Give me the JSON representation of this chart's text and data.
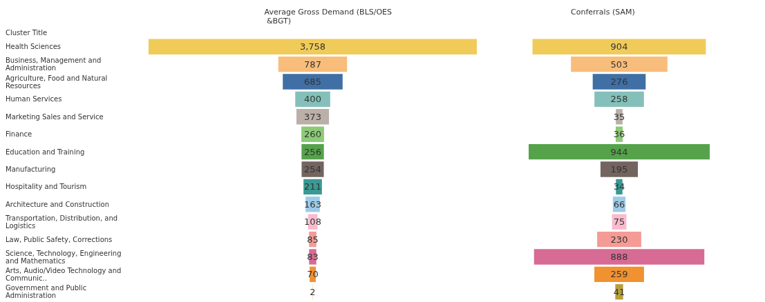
{
  "chart_data": [
    {
      "type": "other",
      "title": "Average Gross Demand (BLS/OES &BGT)",
      "ylabel": "Cluster Title",
      "categories": [
        "Health Sciences",
        "Business, Management and Administration",
        "Agriculture, Food and Natural Resources",
        "Human Services",
        "Marketing Sales and Service",
        "Finance",
        "Education and Training",
        "Manufacturing",
        "Hospitality and Tourism",
        "Architecture and Construction",
        "Transportation, Distribution, and Logistics",
        "Law, Public Safety, Corrections",
        "Science, Technology, Engineering and Mathematics",
        "Arts, Audio/Video Technology and Communic..",
        "Government and Public Administration"
      ],
      "values": [
        3758,
        787,
        685,
        400,
        373,
        260,
        256,
        254,
        211,
        163,
        108,
        85,
        83,
        70,
        2
      ],
      "value_labels": [
        "3,758",
        "787",
        "685",
        "400",
        "373",
        "260",
        "256",
        "254",
        "211",
        "163",
        "108",
        "85",
        "83",
        "70",
        "2"
      ],
      "colors": [
        "#f0cb5a",
        "#f8bd7b",
        "#3f6fa5",
        "#84c0b9",
        "#bab0a8",
        "#8dca77",
        "#55a24b",
        "#736460",
        "#3a9a93",
        "#9ecbe7",
        "#f9bbcd",
        "#f59b95",
        "#d76b94",
        "#f0922f",
        "#b89f3d"
      ]
    },
    {
      "type": "other",
      "title": "Conferrals (SAM)",
      "data_labels": true,
      "values": [
        904,
        503,
        276,
        258,
        35,
        36,
        944,
        195,
        34,
        66,
        75,
        230,
        888,
        259,
        41
      ],
      "colors": [
        "#f0cb5a",
        "#f8bd7b",
        "#3f6fa5",
        "#84c0b9",
        "#bab0a8",
        "#8dca77",
        "#55a24b",
        "#736460",
        "#3a9a93",
        "#9ecbe7",
        "#f9bbcd",
        "#f59b95",
        "#d76b94",
        "#f0922f",
        "#b89f3d"
      ]
    }
  ]
}
